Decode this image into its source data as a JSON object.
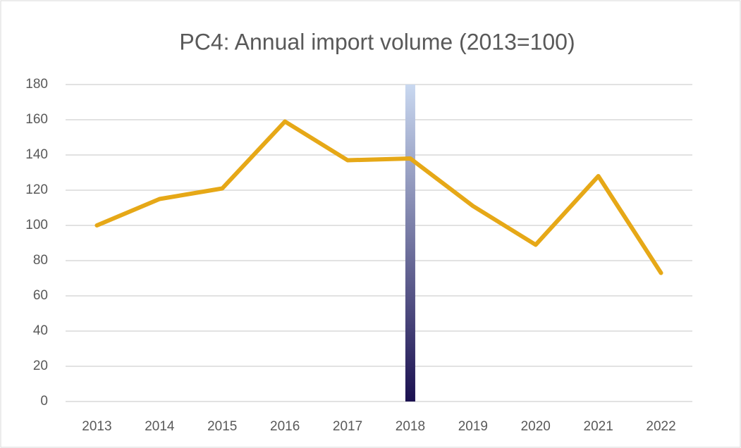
{
  "chart_data": {
    "type": "line",
    "title": "PC4: Annual import volume (2013=100)",
    "categories": [
      "2013",
      "2014",
      "2015",
      "2016",
      "2017",
      "2018",
      "2019",
      "2020",
      "2021",
      "2022"
    ],
    "series": [
      {
        "type": "line",
        "color": "#e6a817",
        "values": [
          100,
          115,
          121,
          159,
          137,
          138,
          111,
          89,
          128,
          73
        ]
      },
      {
        "type": "bar",
        "colors": [
          "#c9d8f0",
          "#1b1150"
        ],
        "values": [
          null,
          null,
          null,
          null,
          null,
          180,
          null,
          null,
          null,
          null
        ]
      }
    ],
    "ylim": [
      0,
      180
    ],
    "yticks": [
      0,
      20,
      40,
      60,
      80,
      100,
      120,
      140,
      160,
      180
    ],
    "grid": true
  }
}
